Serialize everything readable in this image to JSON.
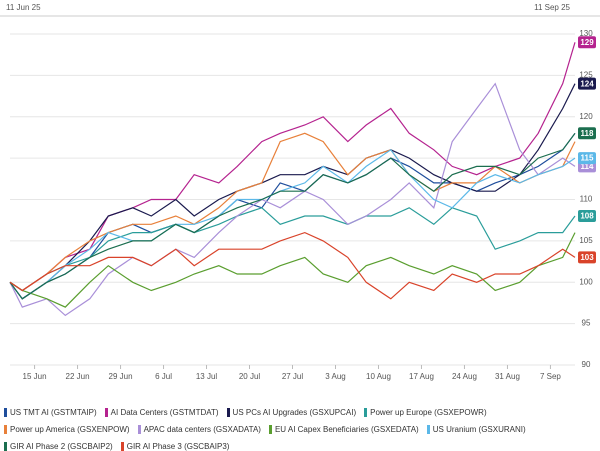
{
  "chart_data": {
    "type": "line",
    "start_label": "11 Jun 25",
    "end_label": "11 Sep 25",
    "x": [
      "2025-06-11",
      "2025-06-13",
      "2025-06-17",
      "2025-06-20",
      "2025-06-24",
      "2025-06-27",
      "2025-07-01",
      "2025-07-04",
      "2025-07-08",
      "2025-07-11",
      "2025-07-15",
      "2025-07-18",
      "2025-07-22",
      "2025-07-25",
      "2025-07-29",
      "2025-08-01",
      "2025-08-05",
      "2025-08-08",
      "2025-08-12",
      "2025-08-15",
      "2025-08-19",
      "2025-08-22",
      "2025-08-26",
      "2025-08-29",
      "2025-09-02",
      "2025-09-05",
      "2025-09-09",
      "2025-09-11"
    ],
    "xlim": [
      "2025-06-11",
      "2025-09-11"
    ],
    "xticks": [
      {
        "value": "2025-06-15",
        "label": "15 Jun"
      },
      {
        "value": "2025-06-22",
        "label": "22 Jun"
      },
      {
        "value": "2025-06-29",
        "label": "29 Jun"
      },
      {
        "value": "2025-07-06",
        "label": "6 Jul"
      },
      {
        "value": "2025-07-13",
        "label": "13 Jul"
      },
      {
        "value": "2025-07-20",
        "label": "20 Jul"
      },
      {
        "value": "2025-07-27",
        "label": "27 Jul"
      },
      {
        "value": "2025-08-03",
        "label": "3 Aug"
      },
      {
        "value": "2025-08-10",
        "label": "10 Aug"
      },
      {
        "value": "2025-08-17",
        "label": "17 Aug"
      },
      {
        "value": "2025-08-24",
        "label": "24 Aug"
      },
      {
        "value": "2025-08-31",
        "label": "31 Aug"
      },
      {
        "value": "2025-09-07",
        "label": "7 Sep"
      }
    ],
    "ylim": [
      90,
      130
    ],
    "yticks": [
      90,
      95,
      100,
      105,
      110,
      115,
      120,
      125,
      130
    ],
    "grid": true,
    "series": [
      {
        "name": "US TMT AI (GSTMTAIP)",
        "color": "#1f4e9c",
        "end_label": false,
        "values": [
          100,
          98,
          100,
          101,
          103,
          106,
          107,
          106,
          107,
          106,
          108,
          110,
          109,
          112,
          111,
          113,
          112,
          113,
          115,
          114,
          112,
          112,
          111,
          112,
          113,
          114,
          116,
          118
        ]
      },
      {
        "name": "AI Data Centers (GSTMTDAT)",
        "color": "#b5238f",
        "end_label": true,
        "values": [
          100,
          99,
          101,
          103,
          104,
          108,
          109,
          110,
          110,
          113,
          112,
          114,
          117,
          118,
          119,
          120,
          117,
          119,
          121,
          118,
          116,
          114,
          113,
          114,
          115,
          118,
          124,
          129
        ]
      },
      {
        "name": "US PCs AI Upgrades (GSXUPCAI)",
        "color": "#1a1a4e",
        "end_label": true,
        "values": [
          100,
          98,
          100,
          102,
          105,
          108,
          109,
          108,
          110,
          108,
          110,
          111,
          112,
          113,
          113,
          114,
          113,
          115,
          116,
          115,
          113,
          112,
          111,
          111,
          113,
          116,
          121,
          124
        ]
      },
      {
        "name": "Power up Europe (GSXEPOWR)",
        "color": "#2a9d9a",
        "end_label": true,
        "values": [
          100,
          99,
          101,
          102,
          103,
          105,
          106,
          106,
          107,
          106,
          107,
          108,
          109,
          107,
          108,
          108,
          107,
          108,
          108,
          109,
          107,
          109,
          108,
          104,
          105,
          106,
          106,
          108
        ]
      },
      {
        "name": "Power up America (GSXENPOW)",
        "color": "#e8803a",
        "end_label": false,
        "values": [
          100,
          99,
          101,
          103,
          105,
          106,
          107,
          107,
          108,
          107,
          109,
          111,
          112,
          117,
          118,
          117,
          113,
          115,
          116,
          113,
          111,
          112,
          112,
          114,
          112,
          113,
          114,
          117
        ]
      },
      {
        "name": "APAC data centers (GSXADATA)",
        "color": "#a98fd8",
        "end_label": true,
        "values": [
          100,
          97,
          98,
          96,
          98,
          101,
          103,
          102,
          104,
          103,
          106,
          108,
          110,
          109,
          111,
          110,
          107,
          108,
          110,
          112,
          109,
          117,
          121,
          124,
          116,
          113,
          115,
          114
        ]
      },
      {
        "name": "EU AI Capex Beneficiaries (GSXEDATA)",
        "color": "#5a9e2f",
        "end_label": false,
        "values": [
          100,
          99,
          98,
          97,
          100,
          102,
          100,
          99,
          100,
          101,
          102,
          101,
          101,
          102,
          103,
          101,
          100,
          102,
          103,
          102,
          101,
          102,
          101,
          99,
          100,
          102,
          103,
          106
        ]
      },
      {
        "name": "US Uranium (GSXURANI)",
        "color": "#5bb8e8",
        "end_label": true,
        "values": [
          100,
          98,
          100,
          102,
          104,
          106,
          105,
          105,
          107,
          107,
          108,
          110,
          110,
          111,
          112,
          114,
          112,
          114,
          116,
          113,
          110,
          109,
          112,
          113,
          112,
          113,
          114,
          115
        ]
      },
      {
        "name": "GIR AI Phase 2 (GSCBAIP2)",
        "color": "#1b6e4f",
        "end_label": true,
        "values": [
          100,
          98,
          100,
          101,
          103,
          104,
          105,
          105,
          107,
          106,
          108,
          109,
          110,
          111,
          111,
          113,
          112,
          113,
          115,
          113,
          111,
          113,
          114,
          114,
          113,
          115,
          116,
          118
        ]
      },
      {
        "name": "GIR AI Phase 3 (GSCBAIP3)",
        "color": "#d9432a",
        "end_label": true,
        "values": [
          100,
          99,
          101,
          102,
          102,
          103,
          103,
          102,
          104,
          102,
          104,
          104,
          104,
          105,
          106,
          105,
          103,
          100,
          98,
          100,
          99,
          101,
          100,
          101,
          101,
          102,
          104,
          103
        ]
      }
    ]
  }
}
